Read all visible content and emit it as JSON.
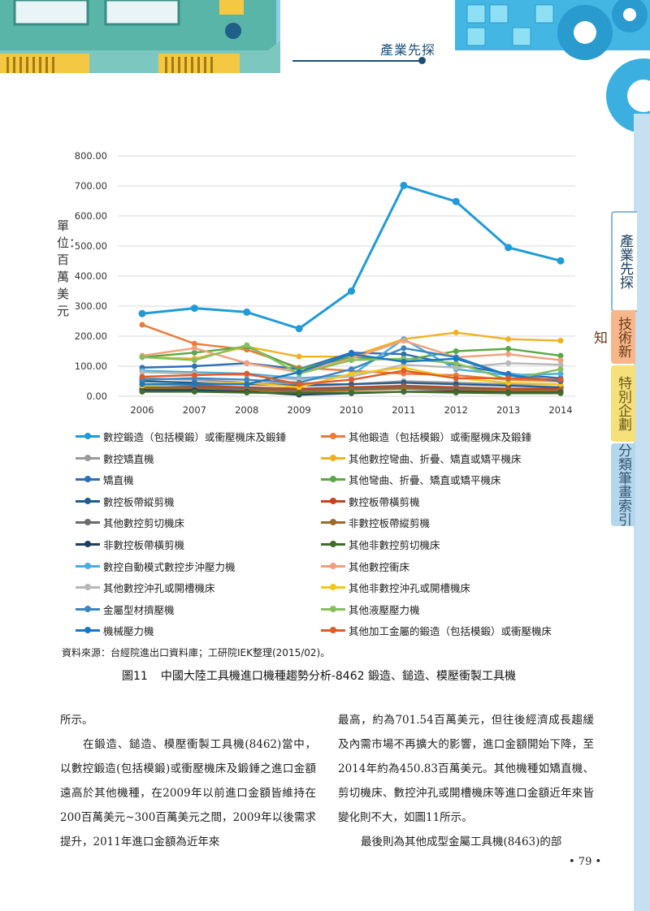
{
  "header": {
    "section_title": "產業先探"
  },
  "side_tabs": [
    {
      "label": "產業先探",
      "active": true
    },
    {
      "label": "技術新知",
      "active": false
    },
    {
      "label": "特別企劃",
      "active": false
    },
    {
      "label": "分類筆畫索引",
      "active": false
    }
  ],
  "chart_data": {
    "type": "line",
    "title": "",
    "ylabel": "單位：百萬美元",
    "xlabel": "",
    "x": [
      "2006",
      "2007",
      "2008",
      "2009",
      "2010",
      "2011",
      "2012",
      "2013",
      "2014"
    ],
    "ylim": [
      0,
      800
    ],
    "yticks": [
      "0.00",
      "100.00",
      "200.00",
      "300.00",
      "400.00",
      "500.00",
      "600.00",
      "700.00",
      "800.00"
    ],
    "grid": true,
    "legend_position": "bottom",
    "series": [
      {
        "name": "數控鍛造（包括模鍛）或衝壓機床及鍛錘",
        "color": "#1f9bd7",
        "values": [
          275,
          293,
          280,
          225,
          350,
          701.54,
          648,
          495,
          450.83
        ]
      },
      {
        "name": "其他鍛造（包括模鍛）或衝壓機床及鍛錘",
        "color": "#ec7a3a",
        "values": [
          238,
          175,
          155,
          95,
          85,
          75,
          70,
          55,
          50
        ]
      },
      {
        "name": "數控矯直機",
        "color": "#9a9a9a",
        "values": [
          60,
          55,
          45,
          40,
          40,
          50,
          45,
          40,
          40
        ]
      },
      {
        "name": "其他數控彎曲、折疊、矯直或矯平機床",
        "color": "#f0b21e",
        "values": [
          130,
          125,
          165,
          132,
          132,
          190,
          212,
          190,
          185
        ]
      },
      {
        "name": "矯直機",
        "color": "#2e6fb5",
        "values": [
          95,
          100,
          110,
          90,
          145,
          140,
          105,
          75,
          60
        ]
      },
      {
        "name": "其他彎曲、折疊、矯直或矯平機床",
        "color": "#5aa844",
        "values": [
          130,
          145,
          165,
          90,
          130,
          120,
          150,
          158,
          135
        ]
      },
      {
        "name": "數控板帶縱剪機",
        "color": "#225d8f",
        "values": [
          50,
          45,
          40,
          35,
          40,
          45,
          40,
          35,
          30
        ]
      },
      {
        "name": "數控板帶橫剪機",
        "color": "#c1461f",
        "values": [
          40,
          35,
          30,
          25,
          30,
          35,
          30,
          25,
          25
        ]
      },
      {
        "name": "其他數控剪切機床",
        "color": "#6b6b6b",
        "values": [
          30,
          30,
          25,
          20,
          25,
          30,
          25,
          20,
          20
        ]
      },
      {
        "name": "非數控板帶縱剪機",
        "color": "#a0692a",
        "values": [
          25,
          25,
          20,
          15,
          20,
          25,
          20,
          18,
          18
        ]
      },
      {
        "name": "非數控板帶橫剪機",
        "color": "#1d3f66",
        "values": [
          20,
          20,
          15,
          5,
          10,
          15,
          15,
          12,
          12
        ]
      },
      {
        "name": "其他非數控剪切機床",
        "color": "#3f6d2a",
        "values": [
          15,
          15,
          12,
          10,
          12,
          15,
          12,
          10,
          10
        ]
      },
      {
        "name": "數控自動模式數控步沖壓力機",
        "color": "#4aaee0",
        "values": [
          85,
          80,
          75,
          60,
          70,
          190,
          90,
          70,
          75
        ]
      },
      {
        "name": "其他數控衝床",
        "color": "#f2a07a",
        "values": [
          135,
          160,
          110,
          80,
          125,
          185,
          130,
          140,
          120
        ]
      },
      {
        "name": "其他數控沖孔或開槽機床",
        "color": "#b8b8b8",
        "values": [
          80,
          75,
          70,
          55,
          65,
          105,
          95,
          110,
          105
        ]
      },
      {
        "name": "其他非數控沖孔或開槽機床",
        "color": "#f5c518",
        "values": [
          35,
          40,
          45,
          30,
          75,
          95,
          60,
          45,
          40
        ]
      },
      {
        "name": "金屬型材擠壓機",
        "color": "#3d85c0",
        "values": [
          55,
          60,
          55,
          45,
          90,
          160,
          130,
          70,
          50
        ]
      },
      {
        "name": "其他液壓壓力機",
        "color": "#86c05a",
        "values": [
          130,
          120,
          170,
          75,
          120,
          125,
          110,
          55,
          90
        ]
      },
      {
        "name": "機械壓力機",
        "color": "#1a78c2",
        "values": [
          40,
          40,
          40,
          80,
          140,
          115,
          125,
          70,
          50
        ]
      },
      {
        "name": "其他加工金屬的鍛造（包括模鍛）或衝壓機床",
        "color": "#e05a2a",
        "values": [
          65,
          70,
          75,
          40,
          55,
          85,
          60,
          60,
          55
        ]
      }
    ]
  },
  "source": "資料來源：台經院進出口資料庫；工研院IEK整理(2015/02)。",
  "caption": {
    "number": "圖11",
    "text": "中國大陸工具機進口機種趨勢分析-8462 鍛造、鎚造、模壓衝製工具機"
  },
  "body": {
    "left_paragraphs": [
      "所示。",
      "在鍛造、鎚造、模壓衝製工具機(8462)當中，以數控鍛造(包括模鍛)或衝壓機床及鍛錘之進口金額遠高於其他機種，在2009年以前進口金額皆維持在200百萬美元~300百萬美元之間，2009年以後需求提升，2011年進口金額為近年來"
    ],
    "right_paragraphs": [
      "最高，約為701.54百萬美元，但往後經濟成長趨緩及內需市場不再擴大的影響，進口金額開始下降，至2014年約為450.83百萬美元。其他機種如矯直機、剪切機床、數控沖孔或開槽機床等進口金額近年來皆變化則不大，如圖11所示。",
      "最後則為其他成型金屬工具機(8463)的部"
    ]
  },
  "page_number": "• 79 •"
}
